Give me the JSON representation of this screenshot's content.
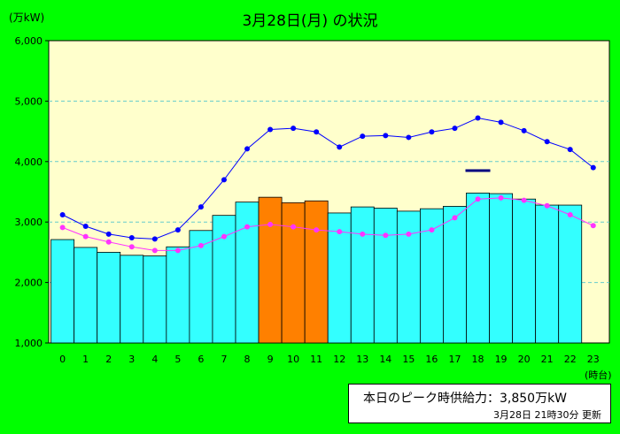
{
  "chart_data": {
    "type": "bar",
    "title": "3月28日(月) の状況",
    "ylabel": "(万kW)",
    "xlabel": "(時台)",
    "ylim": [
      1000,
      6000
    ],
    "yticks": [
      "1,000",
      "2,000",
      "3,000",
      "4,000",
      "5,000",
      "6,000"
    ],
    "categories": [
      "0",
      "1",
      "2",
      "3",
      "4",
      "5",
      "6",
      "7",
      "8",
      "9",
      "10",
      "11",
      "12",
      "13",
      "14",
      "15",
      "16",
      "17",
      "18",
      "19",
      "20",
      "21",
      "22",
      "23"
    ],
    "series": [
      {
        "kind": "bar",
        "values": [
          2710,
          2580,
          2500,
          2450,
          2440,
          2590,
          2860,
          3110,
          3330,
          3410,
          3320,
          3350,
          3150,
          3250,
          3230,
          3180,
          3220,
          3260,
          3480,
          3470,
          3380,
          3280,
          3280,
          null
        ],
        "highlight": [
          9,
          10,
          11
        ]
      },
      {
        "kind": "line",
        "values": [
          3120,
          2930,
          2800,
          2740,
          2720,
          2870,
          3250,
          3700,
          4210,
          4530,
          4550,
          4490,
          4240,
          4420,
          4430,
          4400,
          4490,
          4550,
          4720,
          4650,
          4510,
          4330,
          4200,
          3900
        ]
      },
      {
        "kind": "line",
        "values": [
          2910,
          2760,
          2670,
          2590,
          2530,
          2530,
          2610,
          2760,
          2920,
          2960,
          2920,
          2870,
          2840,
          2800,
          2780,
          2800,
          2870,
          3070,
          3380,
          3400,
          3360,
          3270,
          3120,
          2940
        ]
      },
      {
        "kind": "marker",
        "x": "18",
        "value": 3850
      }
    ],
    "colors": {
      "background": "#00ff00",
      "plot": "#ffffcc",
      "bar": "#33ffff",
      "bar_highlight": "#ff8000",
      "line1": "#0000ff",
      "line2": "#ff33ff",
      "marker": "#000080",
      "grid": "#66cccc"
    },
    "grid": true
  },
  "info": {
    "peak_label": "本日のピーク時供給力：",
    "peak_value": "3,850万kW",
    "update_date": "3月28日",
    "update_time": "21時30分",
    "update_label": "更新"
  }
}
